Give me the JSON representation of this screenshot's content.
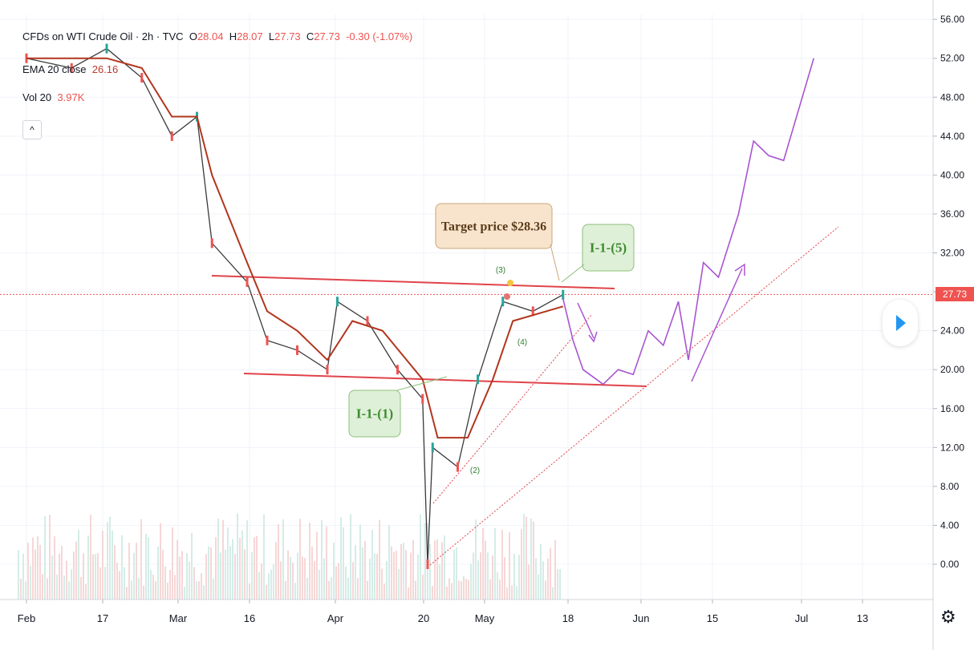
{
  "legend": {
    "symbol": "CFDs on WTI Crude Oil · 2h · TVC",
    "open_label": "O",
    "open": "28.04",
    "high_label": "H",
    "high": "28.07",
    "low_label": "L",
    "low": "27.73",
    "close_label": "C",
    "close": "27.73",
    "change": "-0.30 (-1.07%)",
    "ema_label": "EMA 20 close",
    "ema_value": "26.16",
    "vol_label": "Vol 20",
    "vol_value": "3.97K"
  },
  "last_price_tag": "27.73",
  "colors": {
    "ema": "#b2361e",
    "candle_up": "#26a69a",
    "candle_down": "#ef5350",
    "projection": "#a855d0",
    "annotation_green_bg": "#dff0d8",
    "annotation_tan_bg": "#f8e4cc",
    "trendline": "#e0434a"
  },
  "chart_data": {
    "type": "line",
    "title": "CFDs on WTI Crude Oil · 2h · TVC",
    "y_axis": {
      "ticks": [
        "56.00",
        "52.00",
        "48.00",
        "44.00",
        "40.00",
        "36.00",
        "32.00",
        "28.00",
        "24.00",
        "20.00",
        "16.00",
        "12.00",
        "8.00",
        "4.00",
        "0.00"
      ],
      "range": [
        -2,
        56
      ]
    },
    "x_axis": {
      "ticks": [
        "Feb",
        "17",
        "Mar",
        "16",
        "Apr",
        "20",
        "May",
        "18",
        "Jun",
        "15",
        "Jul",
        "13"
      ]
    },
    "series": [
      {
        "name": "Price",
        "x": [
          "Feb 1",
          "Feb 10",
          "Feb 17",
          "Feb 24",
          "Mar 1",
          "Mar 6",
          "Mar 9",
          "Mar 16",
          "Mar 20",
          "Mar 26",
          "Apr 1",
          "Apr 3",
          "Apr 9",
          "Apr 15",
          "Apr 20",
          "Apr 21",
          "Apr 22",
          "Apr 27",
          "May 1",
          "May 6",
          "May 12",
          "May 18"
        ],
        "y": [
          52,
          51,
          53,
          50,
          44,
          46,
          33,
          29,
          23,
          22,
          20,
          27,
          25,
          20,
          17,
          0,
          12,
          10,
          19,
          27,
          26,
          27.7
        ]
      },
      {
        "name": "EMA 20 close",
        "x": [
          "Feb 1",
          "Feb 17",
          "Feb 24",
          "Mar 1",
          "Mar 6",
          "Mar 9",
          "Mar 16",
          "Mar 20",
          "Mar 26",
          "Apr 1",
          "Apr 6",
          "Apr 12",
          "Apr 20",
          "Apr 23",
          "Apr 29",
          "May 4",
          "May 8",
          "May 18"
        ],
        "y": [
          52,
          52,
          51,
          46,
          46,
          40,
          31,
          26,
          24,
          21,
          25,
          24,
          19,
          13,
          13,
          19,
          25,
          26.5
        ]
      },
      {
        "name": "Projection",
        "x": [
          "May 18",
          "May 20",
          "May 22",
          "May 26",
          "May 29",
          "Jun 1",
          "Jun 4",
          "Jun 7",
          "Jun 10",
          "Jun 12",
          "Jun 15",
          "Jun 18",
          "Jun 22",
          "Jun 25",
          "Jun 28",
          "Jul 1",
          "Jul 7"
        ],
        "y": [
          27.3,
          23,
          20,
          18.5,
          20,
          19.5,
          24,
          22.5,
          27,
          21,
          31,
          29.5,
          36,
          43.5,
          42,
          41.5,
          52
        ]
      }
    ],
    "annotations": [
      {
        "text": "Target price $28.36"
      },
      {
        "text": "I-1-(5)"
      },
      {
        "text": "I-1-(1)"
      },
      {
        "text": "(3)"
      },
      {
        "text": "(4)"
      },
      {
        "text": "(2)"
      }
    ]
  }
}
